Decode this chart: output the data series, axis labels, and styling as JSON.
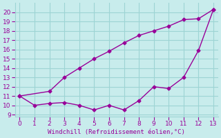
{
  "line1_x": [
    0,
    2,
    3,
    4,
    5,
    6,
    7,
    8,
    9,
    10,
    11,
    12,
    13
  ],
  "line1_y": [
    11.0,
    11.5,
    13.0,
    14.0,
    15.0,
    15.8,
    16.7,
    17.5,
    18.0,
    18.5,
    19.2,
    19.3,
    20.3
  ],
  "line2_x": [
    0,
    1,
    2,
    3,
    4,
    5,
    6,
    7,
    8,
    9,
    10,
    11,
    12,
    13
  ],
  "line2_y": [
    11.0,
    10.0,
    10.2,
    10.3,
    10.0,
    9.5,
    10.0,
    9.5,
    10.5,
    12.0,
    11.8,
    13.0,
    15.9,
    20.3
  ],
  "color": "#990099",
  "bg_color": "#c8ecec",
  "grid_color": "#9dd4d4",
  "xlabel": "Windchill (Refroidissement éolien,°C)",
  "xlim": [
    -0.3,
    13.3
  ],
  "ylim": [
    8.8,
    21.0
  ],
  "yticks": [
    9,
    10,
    11,
    12,
    13,
    14,
    15,
    16,
    17,
    18,
    19,
    20
  ],
  "xticks": [
    0,
    1,
    2,
    3,
    4,
    5,
    6,
    7,
    8,
    9,
    10,
    11,
    12,
    13
  ]
}
